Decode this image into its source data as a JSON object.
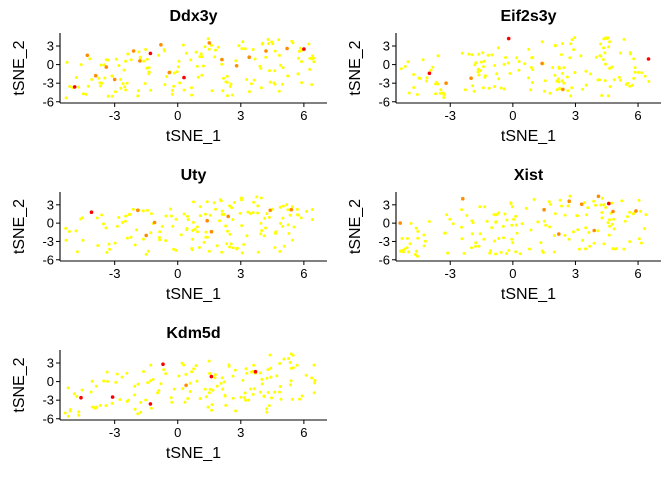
{
  "figure": {
    "background": "#ffffff"
  },
  "colors": {
    "low": "#ffff00",
    "mid": "#ff8c00",
    "high": "#ff0000",
    "axis": "#000000"
  },
  "chart_data": [
    {
      "type": "scatter",
      "title": "Ddx3y",
      "xlabel": "tSNE_1",
      "ylabel": "tSNE_2",
      "xlim": [
        -5.6,
        7.1
      ],
      "ylim": [
        -6.2,
        5.1
      ],
      "xticks": [
        -3,
        0,
        3,
        6
      ],
      "yticks": [
        -6,
        -3,
        0,
        3
      ],
      "highlights": [
        {
          "x": -4.9,
          "y": -3.6,
          "level": "high"
        },
        {
          "x": -4.3,
          "y": 1.5,
          "level": "mid"
        },
        {
          "x": -3.9,
          "y": -1.8,
          "level": "mid"
        },
        {
          "x": -3.4,
          "y": -0.4,
          "level": "mid"
        },
        {
          "x": -3.0,
          "y": -2.4,
          "level": "mid"
        },
        {
          "x": -2.1,
          "y": 2.2,
          "level": "mid"
        },
        {
          "x": -1.8,
          "y": 0.6,
          "level": "mid"
        },
        {
          "x": -1.3,
          "y": 1.8,
          "level": "high"
        },
        {
          "x": -0.8,
          "y": 3.2,
          "level": "mid"
        },
        {
          "x": -0.4,
          "y": -1.3,
          "level": "mid"
        },
        {
          "x": 0.3,
          "y": -2.1,
          "level": "high"
        },
        {
          "x": 1.5,
          "y": 3.5,
          "level": "mid"
        },
        {
          "x": 2.1,
          "y": 0.8,
          "level": "mid"
        },
        {
          "x": 2.8,
          "y": -0.2,
          "level": "mid"
        },
        {
          "x": 3.4,
          "y": 1.2,
          "level": "mid"
        },
        {
          "x": 4.2,
          "y": 2.2,
          "level": "mid"
        },
        {
          "x": 5.2,
          "y": 2.6,
          "level": "mid"
        },
        {
          "x": 6.0,
          "y": 2.5,
          "level": "high"
        }
      ]
    },
    {
      "type": "scatter",
      "title": "Eif2s3y",
      "xlabel": "tSNE_1",
      "ylabel": "tSNE_2",
      "xlim": [
        -5.6,
        7.1
      ],
      "ylim": [
        -6.2,
        5.1
      ],
      "xticks": [
        -3,
        0,
        3,
        6
      ],
      "yticks": [
        -6,
        -3,
        0,
        3
      ],
      "highlights": [
        {
          "x": -4.0,
          "y": -1.4,
          "level": "high"
        },
        {
          "x": -3.2,
          "y": -3.0,
          "level": "mid"
        },
        {
          "x": -2.0,
          "y": -2.2,
          "level": "mid"
        },
        {
          "x": -0.2,
          "y": 4.2,
          "level": "high"
        },
        {
          "x": 1.4,
          "y": 0.2,
          "level": "mid"
        },
        {
          "x": 2.4,
          "y": -4.0,
          "level": "mid"
        },
        {
          "x": 6.5,
          "y": 0.9,
          "level": "high"
        }
      ]
    },
    {
      "type": "scatter",
      "title": "Uty",
      "xlabel": "tSNE_1",
      "ylabel": "tSNE_2",
      "xlim": [
        -5.6,
        7.1
      ],
      "ylim": [
        -6.2,
        5.1
      ],
      "xticks": [
        -3,
        0,
        3,
        6
      ],
      "yticks": [
        -6,
        -3,
        0,
        3
      ],
      "highlights": [
        {
          "x": -4.1,
          "y": 1.8,
          "level": "high"
        },
        {
          "x": -1.9,
          "y": 2.1,
          "level": "mid"
        },
        {
          "x": -1.5,
          "y": -2.0,
          "level": "mid"
        },
        {
          "x": -1.1,
          "y": 0.1,
          "level": "mid"
        },
        {
          "x": 1.4,
          "y": 0.4,
          "level": "mid"
        },
        {
          "x": 1.6,
          "y": -1.4,
          "level": "mid"
        },
        {
          "x": 2.4,
          "y": 1.1,
          "level": "mid"
        },
        {
          "x": 4.4,
          "y": 2.1,
          "level": "mid"
        },
        {
          "x": 5.4,
          "y": 2.2,
          "level": "mid"
        }
      ]
    },
    {
      "type": "scatter",
      "title": "Xist",
      "xlabel": "tSNE_1",
      "ylabel": "tSNE_2",
      "xlim": [
        -5.6,
        7.1
      ],
      "ylim": [
        -6.2,
        5.1
      ],
      "xticks": [
        -3,
        0,
        3,
        6
      ],
      "yticks": [
        -6,
        -3,
        0,
        3
      ],
      "highlights": [
        {
          "x": -5.4,
          "y": 0.0,
          "level": "mid"
        },
        {
          "x": -2.4,
          "y": 4.0,
          "level": "mid"
        },
        {
          "x": 1.5,
          "y": 2.2,
          "level": "mid"
        },
        {
          "x": 2.2,
          "y": -1.8,
          "level": "mid"
        },
        {
          "x": 2.7,
          "y": 3.6,
          "level": "mid"
        },
        {
          "x": 3.3,
          "y": 3.1,
          "level": "mid"
        },
        {
          "x": 3.9,
          "y": -1.2,
          "level": "mid"
        },
        {
          "x": 4.1,
          "y": 4.4,
          "level": "mid"
        },
        {
          "x": 4.6,
          "y": 3.2,
          "level": "high"
        },
        {
          "x": 4.8,
          "y": 1.9,
          "level": "mid"
        },
        {
          "x": 5.9,
          "y": 2.0,
          "level": "mid"
        }
      ]
    },
    {
      "type": "scatter",
      "title": "Kdm5d",
      "xlabel": "tSNE_1",
      "ylabel": "tSNE_2",
      "xlim": [
        -5.6,
        7.1
      ],
      "ylim": [
        -6.2,
        5.1
      ],
      "xticks": [
        -3,
        0,
        3,
        6
      ],
      "yticks": [
        -6,
        -3,
        0,
        3
      ],
      "highlights": [
        {
          "x": -4.6,
          "y": -2.6,
          "level": "high"
        },
        {
          "x": -3.1,
          "y": -2.5,
          "level": "high"
        },
        {
          "x": -1.3,
          "y": -3.6,
          "level": "high"
        },
        {
          "x": -0.7,
          "y": 2.8,
          "level": "high"
        },
        {
          "x": 0.4,
          "y": -0.6,
          "level": "mid"
        },
        {
          "x": 1.6,
          "y": 0.8,
          "level": "high"
        },
        {
          "x": 3.7,
          "y": 1.6,
          "level": "high"
        }
      ]
    }
  ]
}
